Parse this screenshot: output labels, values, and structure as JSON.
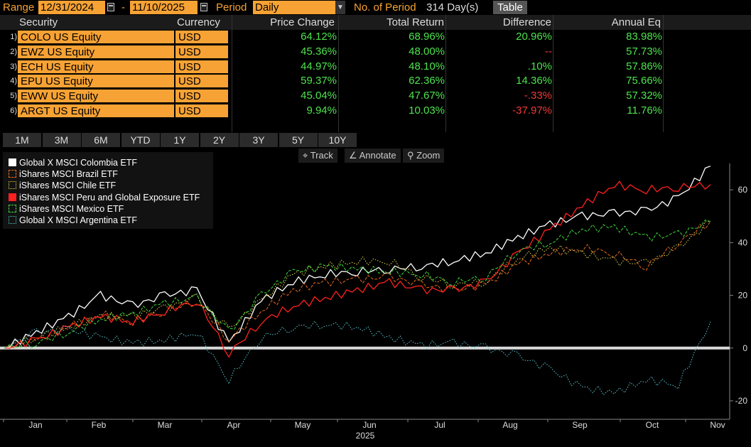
{
  "topbar": {
    "range_label": "Range",
    "start_date": "12/31/2024",
    "dash": "-",
    "end_date": "11/10/2025",
    "period_label": "Period",
    "period_value": "Daily",
    "num_period_label": "No. of Period",
    "num_period_value": "314 Day(s)",
    "table_button": "Table"
  },
  "table": {
    "headers": {
      "security": "Security",
      "currency": "Currency",
      "price_change": "Price Change",
      "total_return": "Total Return",
      "difference": "Difference",
      "annual_eq": "Annual Eq"
    },
    "rows": [
      {
        "num": "1)",
        "security": "COLO US Equity",
        "currency": "USD",
        "price_change": "64.12%",
        "total_return": "68.96%",
        "difference": "20.96%",
        "annual_eq": "83.98%"
      },
      {
        "num": "2)",
        "security": "EWZ US Equity",
        "currency": "USD",
        "price_change": "45.36%",
        "total_return": "48.00%",
        "difference": "--",
        "annual_eq": "57.73%"
      },
      {
        "num": "3)",
        "security": "ECH US Equity",
        "currency": "USD",
        "price_change": "44.97%",
        "total_return": "48.10%",
        "difference": ".10%",
        "annual_eq": "57.86%"
      },
      {
        "num": "4)",
        "security": "EPU US Equity",
        "currency": "USD",
        "price_change": "59.37%",
        "total_return": "62.36%",
        "difference": "14.36%",
        "annual_eq": "75.66%"
      },
      {
        "num": "5)",
        "security": "EWW US Equity",
        "currency": "USD",
        "price_change": "45.04%",
        "total_return": "47.67%",
        "difference": "-.33%",
        "annual_eq": "57.32%"
      },
      {
        "num": "6)",
        "security": "ARGT US Equity",
        "currency": "USD",
        "price_change": "9.94%",
        "total_return": "10.03%",
        "difference": "-37.97%",
        "annual_eq": "11.76%"
      }
    ]
  },
  "period_buttons": [
    "1M",
    "3M",
    "6M",
    "YTD",
    "1Y",
    "2Y",
    "3Y",
    "5Y",
    "10Y"
  ],
  "tools": {
    "track": "Track",
    "annotate": "Annotate",
    "zoom": "Zoom"
  },
  "colors": {
    "accent": "#f7a234",
    "positive": "#4ee34e",
    "negative": "#f03a3a",
    "background": "#000000"
  },
  "chart_data": {
    "type": "line",
    "title": "",
    "xlabel": "2025",
    "ylabel": "",
    "x_ticks": [
      "Jan",
      "Feb",
      "Mar",
      "Apr",
      "May",
      "Jun",
      "Jul",
      "Aug",
      "Sep",
      "Oct",
      "Nov"
    ],
    "y_ticks": [
      -20,
      0,
      20,
      40,
      60
    ],
    "ylim": [
      -27,
      70
    ],
    "grid": false,
    "legend_position": "top-left",
    "x": [
      "Dec 31",
      "Jan 15",
      "Jan 31",
      "Feb 14",
      "Feb 28",
      "Mar 14",
      "Mar 31",
      "Apr 8",
      "Apr 15",
      "Apr 30",
      "May 15",
      "May 30",
      "Jun 13",
      "Jun 30",
      "Jul 15",
      "Jul 31",
      "Aug 15",
      "Aug 29",
      "Sep 15",
      "Sep 30",
      "Oct 15",
      "Oct 31",
      "Nov 10"
    ],
    "series": [
      {
        "name": "Global X MSCI Colombia ETF",
        "color": "#ffffff",
        "style": "solid",
        "values": [
          0,
          6,
          12,
          20,
          16,
          20,
          22,
          2,
          18,
          25,
          28,
          29,
          30,
          31,
          33,
          36,
          42,
          47,
          50,
          51,
          52,
          57,
          69
        ]
      },
      {
        "name": "iShares MSCI Brazil ETF",
        "color": "#e86a1f",
        "style": "dashed",
        "values": [
          0,
          3,
          8,
          13,
          10,
          14,
          18,
          3,
          14,
          22,
          25,
          26,
          27,
          24,
          22,
          24,
          32,
          36,
          38,
          36,
          31,
          40,
          48
        ]
      },
      {
        "name": "iShares MSCI Chile ETF",
        "color": "#e8d84a",
        "style": "dotted",
        "values": [
          0,
          4,
          8,
          12,
          12,
          15,
          19,
          7,
          18,
          28,
          31,
          33,
          33,
          27,
          24,
          25,
          34,
          38,
          36,
          33,
          32,
          38,
          48
        ]
      },
      {
        "name": "iShares MSCI Peru and Global Exposure ETF",
        "color": "#ff2020",
        "style": "solid",
        "values": [
          0,
          3,
          8,
          12,
          10,
          14,
          18,
          -2,
          10,
          16,
          19,
          22,
          25,
          22,
          22,
          25,
          36,
          45,
          54,
          62,
          60,
          61,
          62
        ]
      },
      {
        "name": "iShares MSCI Mexico ETF",
        "color": "#3fd83f",
        "style": "dashed",
        "values": [
          0,
          2,
          6,
          11,
          13,
          17,
          19,
          6,
          20,
          29,
          31,
          30,
          29,
          28,
          25,
          27,
          37,
          40,
          45,
          46,
          42,
          43,
          48
        ]
      },
      {
        "name": "Global X MSCI Argentina ETF",
        "color": "#5cc6d0",
        "style": "dotted",
        "values": [
          0,
          6,
          7,
          4,
          2,
          3,
          6,
          -12,
          4,
          8,
          9,
          8,
          4,
          1,
          2,
          0,
          -3,
          -8,
          -15,
          -17,
          -12,
          -14,
          10
        ]
      }
    ]
  }
}
